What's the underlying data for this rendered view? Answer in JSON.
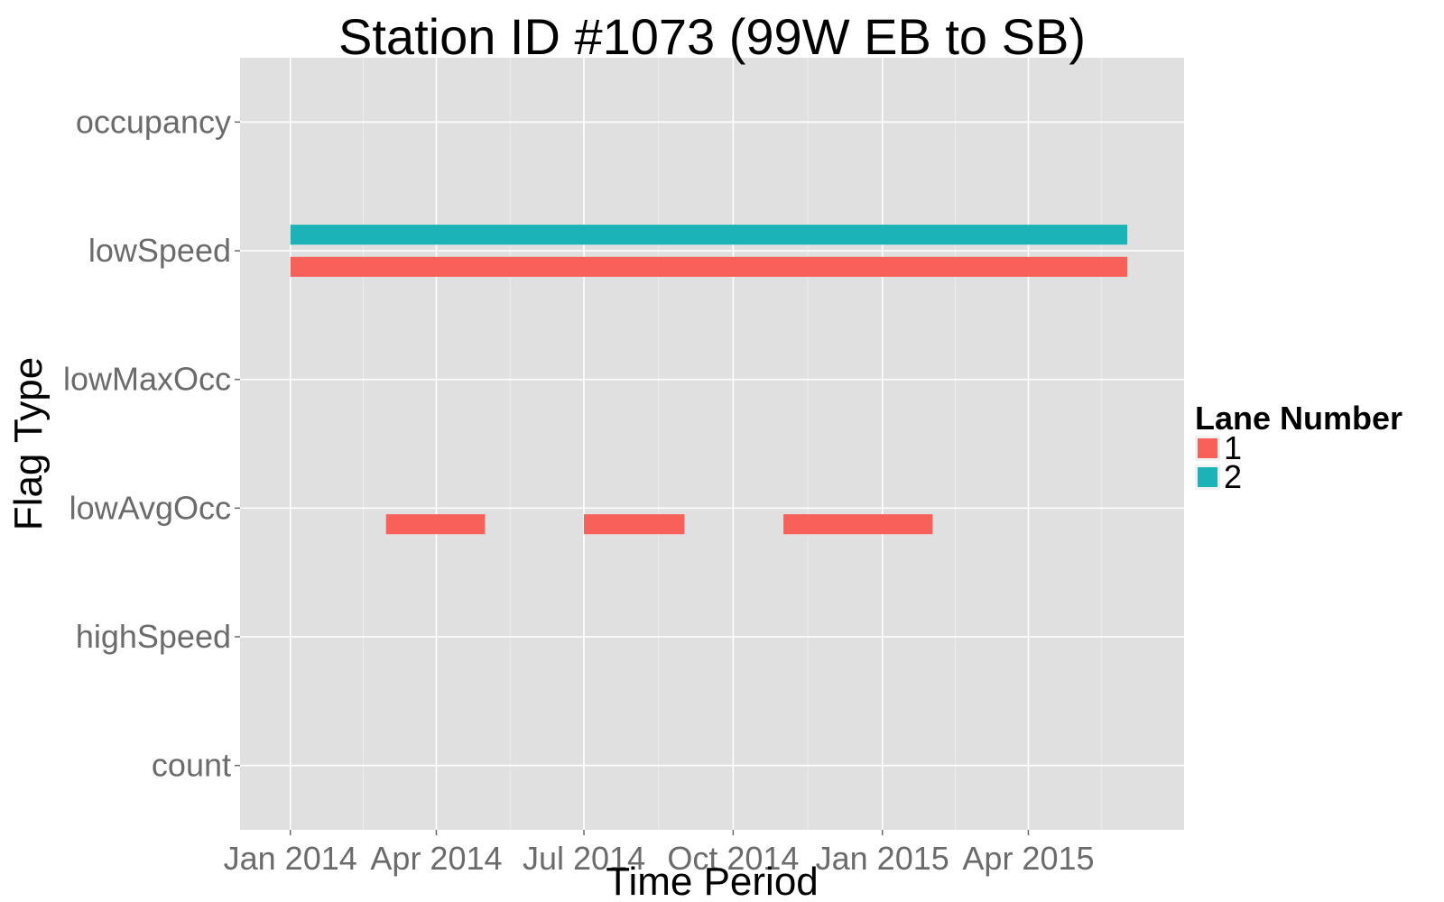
{
  "chart_data": {
    "type": "bar",
    "subtype": "timeline-segments",
    "title": "Station ID #1073 (99W EB to SB)",
    "xlabel": "Time Period",
    "ylabel": "Flag Type",
    "xlim": [
      "2013-12-01",
      "2015-07-06"
    ],
    "x_ticks": [
      {
        "date": "2014-01-01",
        "label": "Jan 2014"
      },
      {
        "date": "2014-04-01",
        "label": "Apr 2014"
      },
      {
        "date": "2014-07-01",
        "label": "Jul 2014"
      },
      {
        "date": "2014-10-01",
        "label": "Oct 2014"
      },
      {
        "date": "2015-01-01",
        "label": "Jan 2015"
      },
      {
        "date": "2015-04-01",
        "label": "Apr 2015"
      }
    ],
    "categories": [
      "count",
      "highSpeed",
      "lowAvgOcc",
      "lowMaxOcc",
      "lowSpeed",
      "occupancy"
    ],
    "grid": true,
    "background": "#e0e0e0",
    "legend": {
      "title": "Lane Number",
      "position": "right",
      "entries": [
        {
          "label": "1",
          "color": "#f8615a"
        },
        {
          "label": "2",
          "color": "#1bb3b7"
        }
      ]
    },
    "series": [
      {
        "name": "1",
        "color": "#f8615a",
        "segments": [
          {
            "category": "lowSpeed",
            "start": "2014-01-01",
            "end": "2015-06-01"
          },
          {
            "category": "lowAvgOcc",
            "start": "2014-03-01",
            "end": "2014-05-01"
          },
          {
            "category": "lowAvgOcc",
            "start": "2014-07-01",
            "end": "2014-09-01"
          },
          {
            "category": "lowAvgOcc",
            "start": "2014-11-01",
            "end": "2015-02-01"
          }
        ]
      },
      {
        "name": "2",
        "color": "#1bb3b7",
        "segments": [
          {
            "category": "lowSpeed",
            "start": "2014-01-01",
            "end": "2015-06-01"
          }
        ]
      }
    ]
  }
}
